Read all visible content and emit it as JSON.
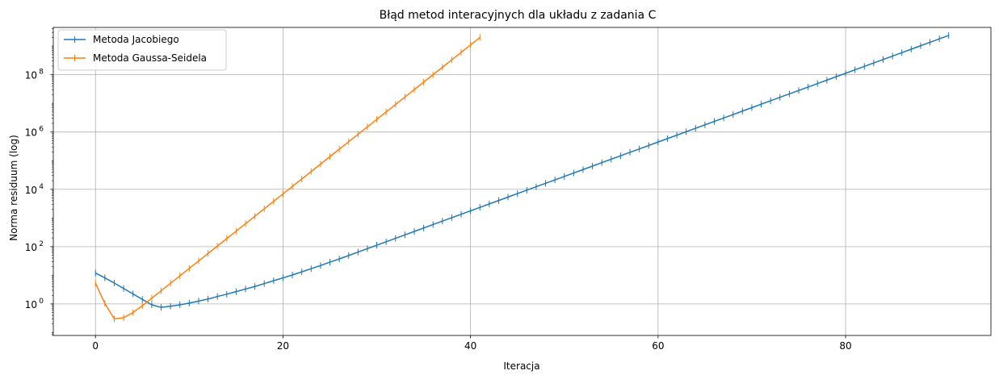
{
  "chart_data": {
    "type": "line",
    "title": "Błąd metod interacyjnych dla układu z zadania C",
    "xlabel": "Iteracja",
    "ylabel": "Norma residuum (log)",
    "yscale": "log",
    "xlim": [
      -4.5,
      95.5
    ],
    "ylim_log10": [
      -1.1,
      9.65
    ],
    "grid": true,
    "legend_position": "top-left",
    "x_ticks": [
      0,
      20,
      40,
      60,
      80
    ],
    "y_ticks": [
      {
        "base": "10",
        "exp": "0",
        "log": 0
      },
      {
        "base": "10",
        "exp": "2",
        "log": 2
      },
      {
        "base": "10",
        "exp": "4",
        "log": 4
      },
      {
        "base": "10",
        "exp": "6",
        "log": 6
      },
      {
        "base": "10",
        "exp": "8",
        "log": 8
      }
    ],
    "series": [
      {
        "name": "Metoda Jacobiego",
        "color": "#1f77b4",
        "x_start": 0,
        "log10_values": [
          1.08,
          0.91,
          0.73,
          0.54,
          0.35,
          0.16,
          -0.03,
          -0.12,
          -0.08,
          -0.03,
          0.03,
          0.1,
          0.17,
          0.26,
          0.34,
          0.43,
          0.52,
          0.61,
          0.71,
          0.81,
          0.91,
          1.01,
          1.12,
          1.23,
          1.34,
          1.46,
          1.57,
          1.69,
          1.81,
          1.93,
          2.05,
          2.17,
          2.29,
          2.41,
          2.53,
          2.65,
          2.77,
          2.89,
          3.01,
          3.13,
          3.25,
          3.37,
          3.49,
          3.61,
          3.73,
          3.85,
          3.97,
          4.09,
          4.21,
          4.33,
          4.45,
          4.57,
          4.69,
          4.81,
          4.93,
          5.05,
          5.17,
          5.29,
          5.41,
          5.53,
          5.65,
          5.77,
          5.89,
          6.01,
          6.13,
          6.25,
          6.37,
          6.49,
          6.61,
          6.73,
          6.85,
          6.97,
          7.09,
          7.21,
          7.33,
          7.45,
          7.57,
          7.69,
          7.81,
          7.93,
          8.05,
          8.17,
          8.29,
          8.41,
          8.53,
          8.65,
          8.77,
          8.89,
          9.01,
          9.13,
          9.25,
          9.37
        ]
      },
      {
        "name": "Metoda Gaussa-Seidela",
        "color": "#ff7f0e",
        "x_start": 0,
        "log10_values": [
          0.72,
          0.02,
          -0.52,
          -0.48,
          -0.3,
          -0.06,
          0.2,
          0.46,
          0.72,
          0.98,
          1.24,
          1.5,
          1.76,
          2.02,
          2.28,
          2.54,
          2.8,
          3.06,
          3.32,
          3.58,
          3.84,
          4.1,
          4.36,
          4.62,
          4.88,
          5.14,
          5.4,
          5.66,
          5.92,
          6.18,
          6.44,
          6.7,
          6.96,
          7.22,
          7.48,
          7.74,
          8.0,
          8.26,
          8.52,
          8.78,
          9.04,
          9.3
        ]
      }
    ]
  }
}
